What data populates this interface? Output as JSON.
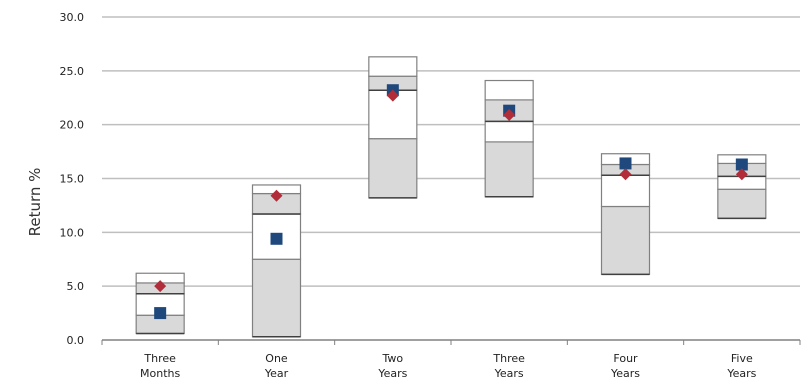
{
  "chart_data": {
    "type": "box",
    "title": "",
    "xlabel": "",
    "ylabel": "Return %",
    "ylim": [
      0,
      30
    ],
    "yticks": [
      "0.0",
      "5.0",
      "10.0",
      "15.0",
      "20.0",
      "25.0",
      "30.0"
    ],
    "grid": true,
    "categories": [
      [
        "Three",
        "Months"
      ],
      [
        "One",
        "Year"
      ],
      [
        "Two",
        "Years"
      ],
      [
        "Three",
        "Years"
      ],
      [
        "Four",
        "Years"
      ],
      [
        "Five",
        "Years"
      ]
    ],
    "ranges": [
      {
        "min": 0.6,
        "q1": 2.3,
        "median": 4.3,
        "q3": 5.3,
        "max": 6.2
      },
      {
        "min": 0.3,
        "q1": 7.5,
        "median": 11.7,
        "q3": 13.6,
        "max": 14.4
      },
      {
        "min": 13.2,
        "q1": 18.7,
        "median": 23.2,
        "q3": 24.5,
        "max": 26.3
      },
      {
        "min": 13.3,
        "q1": 18.4,
        "median": 20.3,
        "q3": 22.3,
        "max": 24.1
      },
      {
        "min": 6.1,
        "q1": 12.4,
        "median": 15.3,
        "q3": 16.3,
        "max": 17.3
      },
      {
        "min": 11.3,
        "q1": 14.0,
        "median": 15.2,
        "q3": 16.4,
        "max": 17.2
      }
    ],
    "series": [
      {
        "marker": "square",
        "color": "#1F497D",
        "values": [
          2.5,
          9.4,
          23.2,
          21.3,
          16.4,
          16.3
        ]
      },
      {
        "marker": "diamond",
        "color": "#B22D3A",
        "values": [
          5.0,
          13.4,
          22.7,
          20.9,
          15.4,
          15.4
        ]
      }
    ],
    "colors": {
      "lower_box": "#D9D9D9",
      "upper_box": "#FFFFFF",
      "box_outline": "#808080",
      "gridline": "#BFBFBF",
      "axis": "#808080"
    }
  }
}
